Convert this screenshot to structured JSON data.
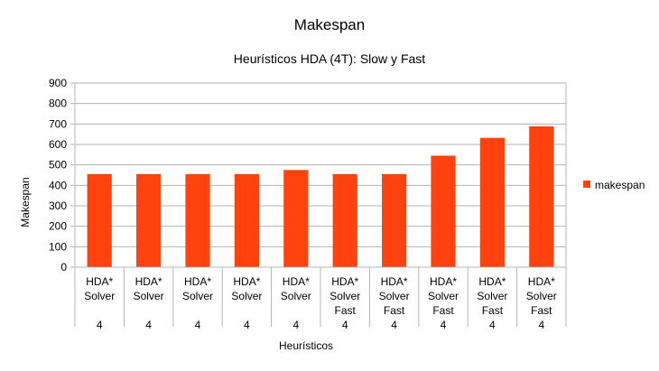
{
  "chart_data": {
    "type": "bar",
    "title": "Makespan",
    "subtitle": "Heurísticos HDA (4T): Slow y Fast",
    "xlabel": "Heurísticos",
    "ylabel": "Makespan",
    "ylim": [
      0,
      900
    ],
    "yticks": [
      "0",
      "100",
      "200",
      "300",
      "400",
      "500",
      "600",
      "700",
      "800",
      "900"
    ],
    "grid": true,
    "legend": "right",
    "categories": [
      [
        "HDA*",
        "Solver",
        "",
        "4"
      ],
      [
        "HDA*",
        "Solver",
        "",
        "4"
      ],
      [
        "HDA*",
        "Solver",
        "",
        "4"
      ],
      [
        "HDA*",
        "Solver",
        "",
        "4"
      ],
      [
        "HDA*",
        "Solver",
        "",
        "4"
      ],
      [
        "HDA*",
        "Solver",
        "Fast",
        "4"
      ],
      [
        "HDA*",
        "Solver",
        "Fast",
        "4"
      ],
      [
        "HDA*",
        "Solver",
        "Fast",
        "4"
      ],
      [
        "HDA*",
        "Solver",
        "Fast",
        "4"
      ],
      [
        "HDA*",
        "Solver",
        "Fast",
        "4"
      ]
    ],
    "series": [
      {
        "name": "makespan",
        "color": "#ff420e",
        "values": [
          455,
          455,
          455,
          455,
          475,
          455,
          455,
          545,
          632,
          688
        ]
      }
    ]
  }
}
